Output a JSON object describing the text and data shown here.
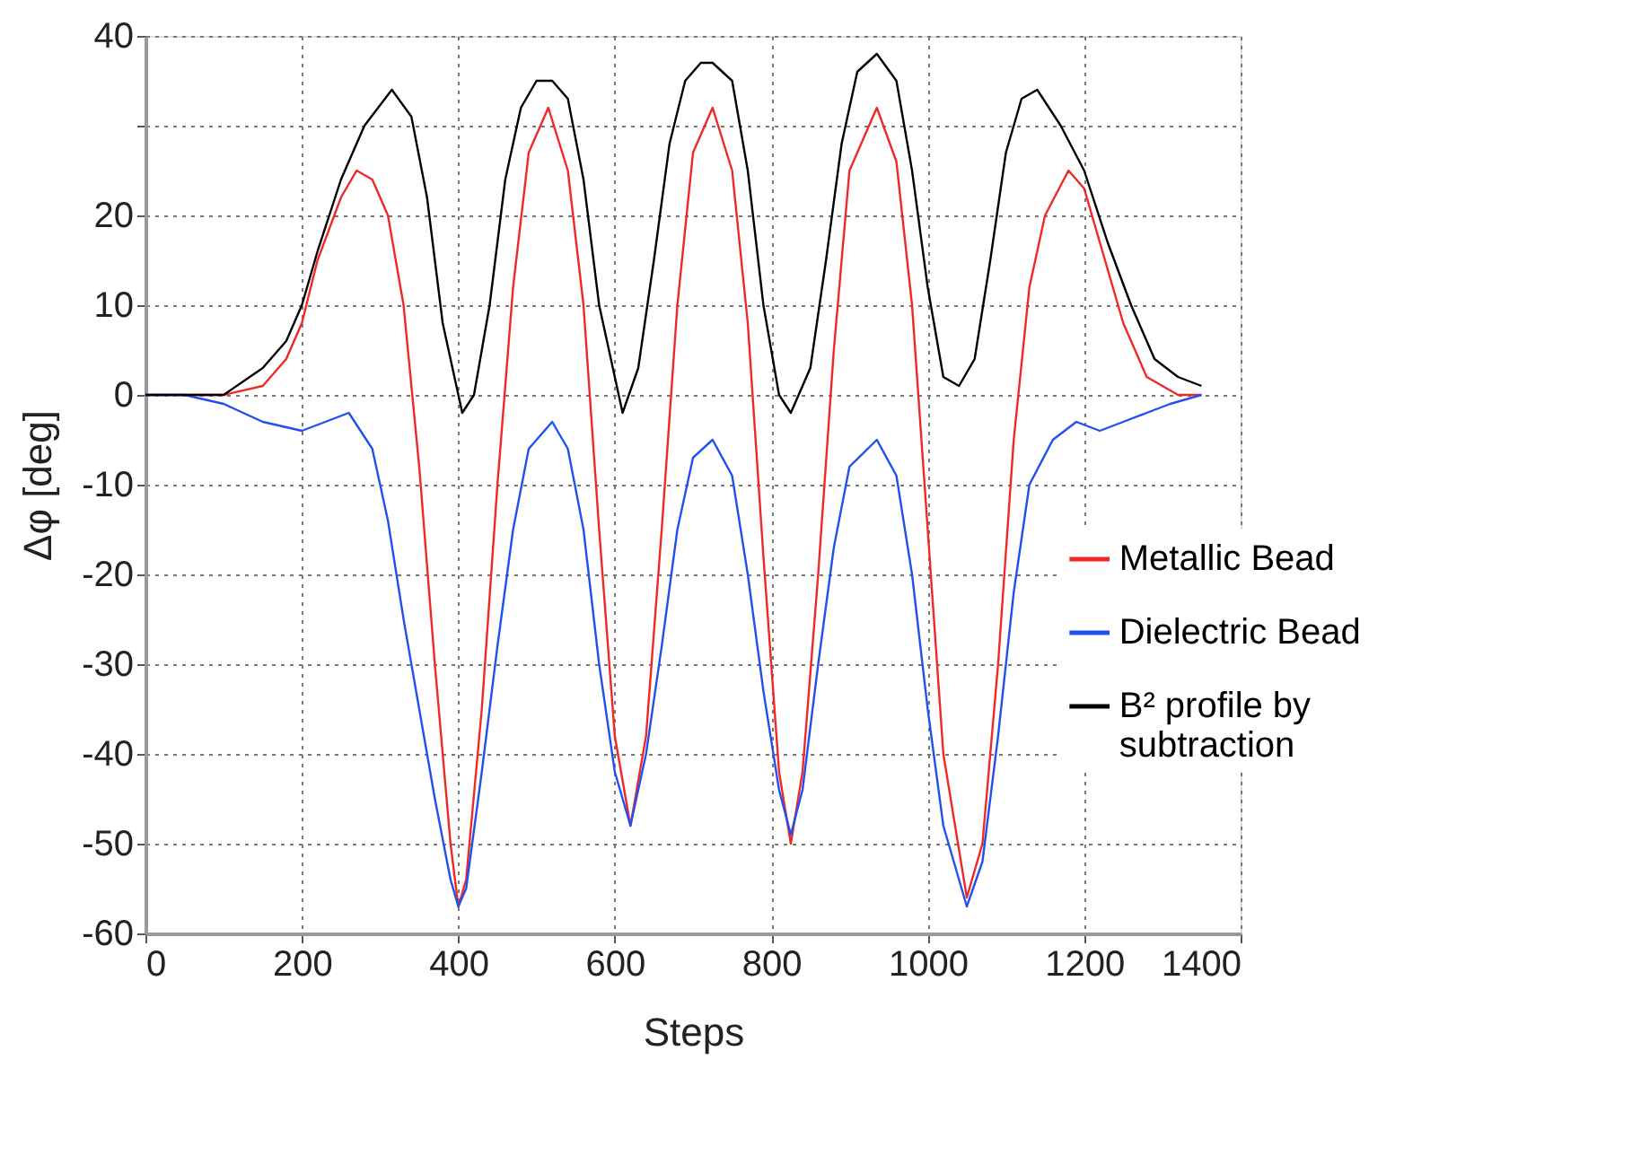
{
  "chart_data": {
    "type": "line",
    "xlabel": "Steps",
    "ylabel": "Δφ [deg]",
    "xlim": [
      0,
      1400
    ],
    "ylim": [
      -60,
      40
    ],
    "xticks": [
      0,
      200,
      400,
      600,
      800,
      1000,
      1200,
      1400
    ],
    "yticks": [
      40,
      {
        "value": 30,
        "label": null
      },
      20,
      10,
      0,
      -10,
      -20,
      -30,
      -40,
      -50,
      -60
    ],
    "grid": true,
    "legend": "right",
    "line_style": "solid",
    "marker": "none",
    "series": [
      {
        "name": "Metallic Bead",
        "color": "#f02828",
        "x": [
          0,
          50,
          100,
          150,
          180,
          200,
          220,
          250,
          270,
          290,
          310,
          330,
          350,
          370,
          390,
          400,
          410,
          430,
          450,
          470,
          490,
          515,
          540,
          560,
          580,
          600,
          620,
          640,
          660,
          680,
          700,
          725,
          750,
          770,
          790,
          810,
          825,
          840,
          860,
          880,
          900,
          935,
          960,
          980,
          1000,
          1020,
          1050,
          1070,
          1090,
          1110,
          1130,
          1150,
          1180,
          1200,
          1220,
          1250,
          1280,
          1300,
          1320,
          1350
        ],
        "values": [
          0,
          0,
          0,
          1,
          4,
          8,
          15,
          22,
          25,
          24,
          20,
          10,
          -8,
          -30,
          -50,
          -57,
          -54,
          -35,
          -10,
          12,
          27,
          32,
          25,
          10,
          -15,
          -38,
          -48,
          -38,
          -15,
          10,
          27,
          32,
          25,
          8,
          -18,
          -42,
          -50,
          -42,
          -20,
          5,
          25,
          32,
          26,
          10,
          -15,
          -40,
          -56,
          -50,
          -30,
          -5,
          12,
          20,
          25,
          23,
          17,
          8,
          2,
          1,
          0,
          0
        ]
      },
      {
        "name": "Dielectric Bead",
        "color": "#2050f0",
        "x": [
          0,
          50,
          100,
          150,
          200,
          230,
          260,
          290,
          310,
          330,
          350,
          370,
          390,
          400,
          410,
          430,
          450,
          470,
          490,
          520,
          540,
          560,
          580,
          600,
          620,
          640,
          660,
          680,
          700,
          725,
          750,
          770,
          790,
          810,
          825,
          840,
          860,
          880,
          900,
          935,
          960,
          980,
          1000,
          1020,
          1050,
          1070,
          1090,
          1110,
          1130,
          1160,
          1190,
          1220,
          1250,
          1280,
          1310,
          1350
        ],
        "values": [
          0,
          0,
          -1,
          -3,
          -4,
          -3,
          -2,
          -6,
          -14,
          -25,
          -35,
          -45,
          -54,
          -57,
          -55,
          -42,
          -28,
          -15,
          -6,
          -3,
          -6,
          -15,
          -30,
          -42,
          -48,
          -40,
          -28,
          -15,
          -7,
          -5,
          -9,
          -20,
          -33,
          -44,
          -49,
          -44,
          -30,
          -17,
          -8,
          -5,
          -9,
          -20,
          -35,
          -48,
          -57,
          -52,
          -38,
          -22,
          -10,
          -5,
          -3,
          -4,
          -3,
          -2,
          -1,
          0
        ]
      },
      {
        "name": "B² profile by subtraction",
        "color": "#000000",
        "x": [
          0,
          50,
          100,
          150,
          180,
          200,
          220,
          250,
          280,
          315,
          340,
          360,
          380,
          405,
          420,
          440,
          460,
          480,
          500,
          520,
          540,
          560,
          580,
          610,
          630,
          650,
          670,
          690,
          710,
          725,
          750,
          770,
          790,
          810,
          825,
          850,
          870,
          890,
          910,
          935,
          960,
          980,
          1000,
          1020,
          1040,
          1060,
          1080,
          1100,
          1120,
          1140,
          1170,
          1200,
          1230,
          1260,
          1290,
          1320,
          1350
        ],
        "values": [
          0,
          0,
          0,
          3,
          6,
          10,
          16,
          24,
          30,
          34,
          31,
          22,
          8,
          -2,
          0,
          10,
          24,
          32,
          35,
          35,
          33,
          24,
          10,
          -2,
          3,
          15,
          28,
          35,
          37,
          37,
          35,
          25,
          10,
          0,
          -2,
          3,
          15,
          28,
          36,
          38,
          35,
          25,
          12,
          2,
          1,
          4,
          15,
          27,
          33,
          34,
          30,
          25,
          17,
          10,
          4,
          2,
          1
        ]
      }
    ]
  }
}
